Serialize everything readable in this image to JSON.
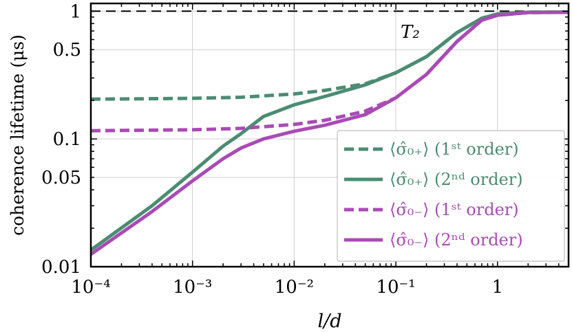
{
  "chart_data": {
    "type": "line",
    "title": "",
    "xlabel": "l/d",
    "ylabel": "coherence lifetime (μs)",
    "x_scale": "log",
    "y_scale": "log",
    "xlim": [
      0.0001,
      5
    ],
    "ylim": [
      0.01,
      1.15
    ],
    "x_tick_values": [
      0.0001,
      0.001,
      0.01,
      0.1,
      1
    ],
    "x_tick_labels": [
      "10⁻⁴",
      "10⁻³",
      "10⁻²",
      "10⁻¹",
      "1"
    ],
    "y_tick_values": [
      0.01,
      0.05,
      0.1,
      0.5,
      1
    ],
    "y_tick_labels": [
      "0.01",
      "0.05",
      "0.1",
      "0.5",
      "1"
    ],
    "grid": true,
    "legend_position": "bottom-right",
    "reference_line": {
      "label": "T₂",
      "y": 1.0,
      "style": "dashed",
      "color": "#000000"
    },
    "series": [
      {
        "name": "⟨σ̂₀₊⟩ (1ˢᵗ order)",
        "color": "#4c8c72",
        "dash": true,
        "x": [
          0.0001,
          0.0003,
          0.001,
          0.003,
          0.01,
          0.02,
          0.05,
          0.1,
          0.2,
          0.4,
          0.7,
          1,
          2,
          5
        ],
        "y": [
          0.205,
          0.206,
          0.208,
          0.212,
          0.225,
          0.24,
          0.27,
          0.33,
          0.44,
          0.68,
          0.88,
          0.95,
          0.98,
          0.985
        ]
      },
      {
        "name": "⟨σ̂₀₊⟩ (2ⁿᵈ order)",
        "color": "#4c8c72",
        "dash": false,
        "x": [
          0.0001,
          0.0004,
          0.001,
          0.002,
          0.003,
          0.005,
          0.01,
          0.02,
          0.05,
          0.1,
          0.2,
          0.4,
          0.7,
          1,
          2,
          5
        ],
        "y": [
          0.0135,
          0.03,
          0.055,
          0.088,
          0.11,
          0.15,
          0.185,
          0.215,
          0.265,
          0.33,
          0.44,
          0.68,
          0.88,
          0.95,
          0.98,
          0.985
        ]
      },
      {
        "name": "⟨σ̂₀₋⟩ (1ˢᵗ order)",
        "color": "#a94bb5",
        "dash": true,
        "x": [
          0.0001,
          0.0003,
          0.001,
          0.003,
          0.01,
          0.02,
          0.05,
          0.1,
          0.2,
          0.4,
          0.7,
          1,
          2,
          5
        ],
        "y": [
          0.116,
          0.117,
          0.118,
          0.121,
          0.13,
          0.14,
          0.165,
          0.21,
          0.32,
          0.58,
          0.85,
          0.93,
          0.975,
          0.98
        ]
      },
      {
        "name": "⟨σ̂₀₋⟩ (2ⁿᵈ order)",
        "color": "#a94bb5",
        "dash": false,
        "x": [
          0.0001,
          0.0004,
          0.001,
          0.002,
          0.003,
          0.005,
          0.01,
          0.02,
          0.05,
          0.1,
          0.2,
          0.4,
          0.7,
          1,
          2,
          5
        ],
        "y": [
          0.0125,
          0.027,
          0.047,
          0.07,
          0.085,
          0.1,
          0.115,
          0.128,
          0.155,
          0.21,
          0.32,
          0.58,
          0.85,
          0.93,
          0.975,
          0.98
        ]
      }
    ]
  }
}
